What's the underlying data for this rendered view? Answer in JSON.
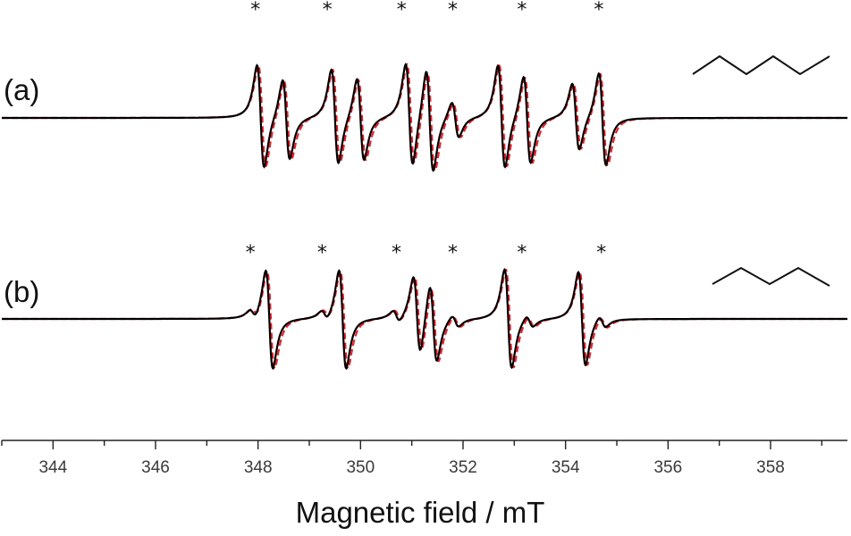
{
  "chart_data": {
    "type": "line",
    "title": "",
    "xlabel": "Magnetic field / mT",
    "ylabel": "",
    "xlim": [
      343,
      359.5
    ],
    "x_ticks": [
      344,
      346,
      348,
      350,
      352,
      354,
      356,
      358
    ],
    "grid": false,
    "colors": {
      "experimental": "#000000",
      "simulated": "#e8202a"
    },
    "panels": [
      {
        "label": "(a)",
        "structure_icon": "hexyl-chain-icon",
        "asterisk_fields": [
          347.95,
          349.35,
          350.8,
          351.8,
          353.15,
          354.65
        ],
        "lines": [
          {
            "center": 348.05,
            "amp": 1.0
          },
          {
            "center": 348.55,
            "amp": 0.78
          },
          {
            "center": 349.5,
            "amp": 0.92
          },
          {
            "center": 350.0,
            "amp": 0.8
          },
          {
            "center": 350.95,
            "amp": 1.0
          },
          {
            "center": 351.35,
            "amp": 1.0
          },
          {
            "center": 351.85,
            "amp": 0.35
          },
          {
            "center": 352.75,
            "amp": 1.0
          },
          {
            "center": 353.25,
            "amp": 0.85
          },
          {
            "center": 354.2,
            "amp": 0.65
          },
          {
            "center": 354.72,
            "amp": 0.9
          }
        ]
      },
      {
        "label": "(b)",
        "structure_icon": "pentyl-chain-icon",
        "asterisk_fields": [
          347.85,
          349.25,
          350.7,
          351.8,
          353.15,
          354.7
        ],
        "lines": [
          {
            "center": 347.9,
            "amp": 0.1
          },
          {
            "center": 348.22,
            "amp": 1.0
          },
          {
            "center": 349.3,
            "amp": 0.1
          },
          {
            "center": 349.65,
            "amp": 1.0
          },
          {
            "center": 350.7,
            "amp": 0.12
          },
          {
            "center": 351.1,
            "amp": 0.8
          },
          {
            "center": 351.42,
            "amp": 0.8
          },
          {
            "center": 351.85,
            "amp": 0.12
          },
          {
            "center": 352.88,
            "amp": 1.0
          },
          {
            "center": 353.3,
            "amp": 0.12
          },
          {
            "center": 354.32,
            "amp": 0.95
          },
          {
            "center": 354.72,
            "amp": 0.12
          }
        ]
      }
    ]
  }
}
